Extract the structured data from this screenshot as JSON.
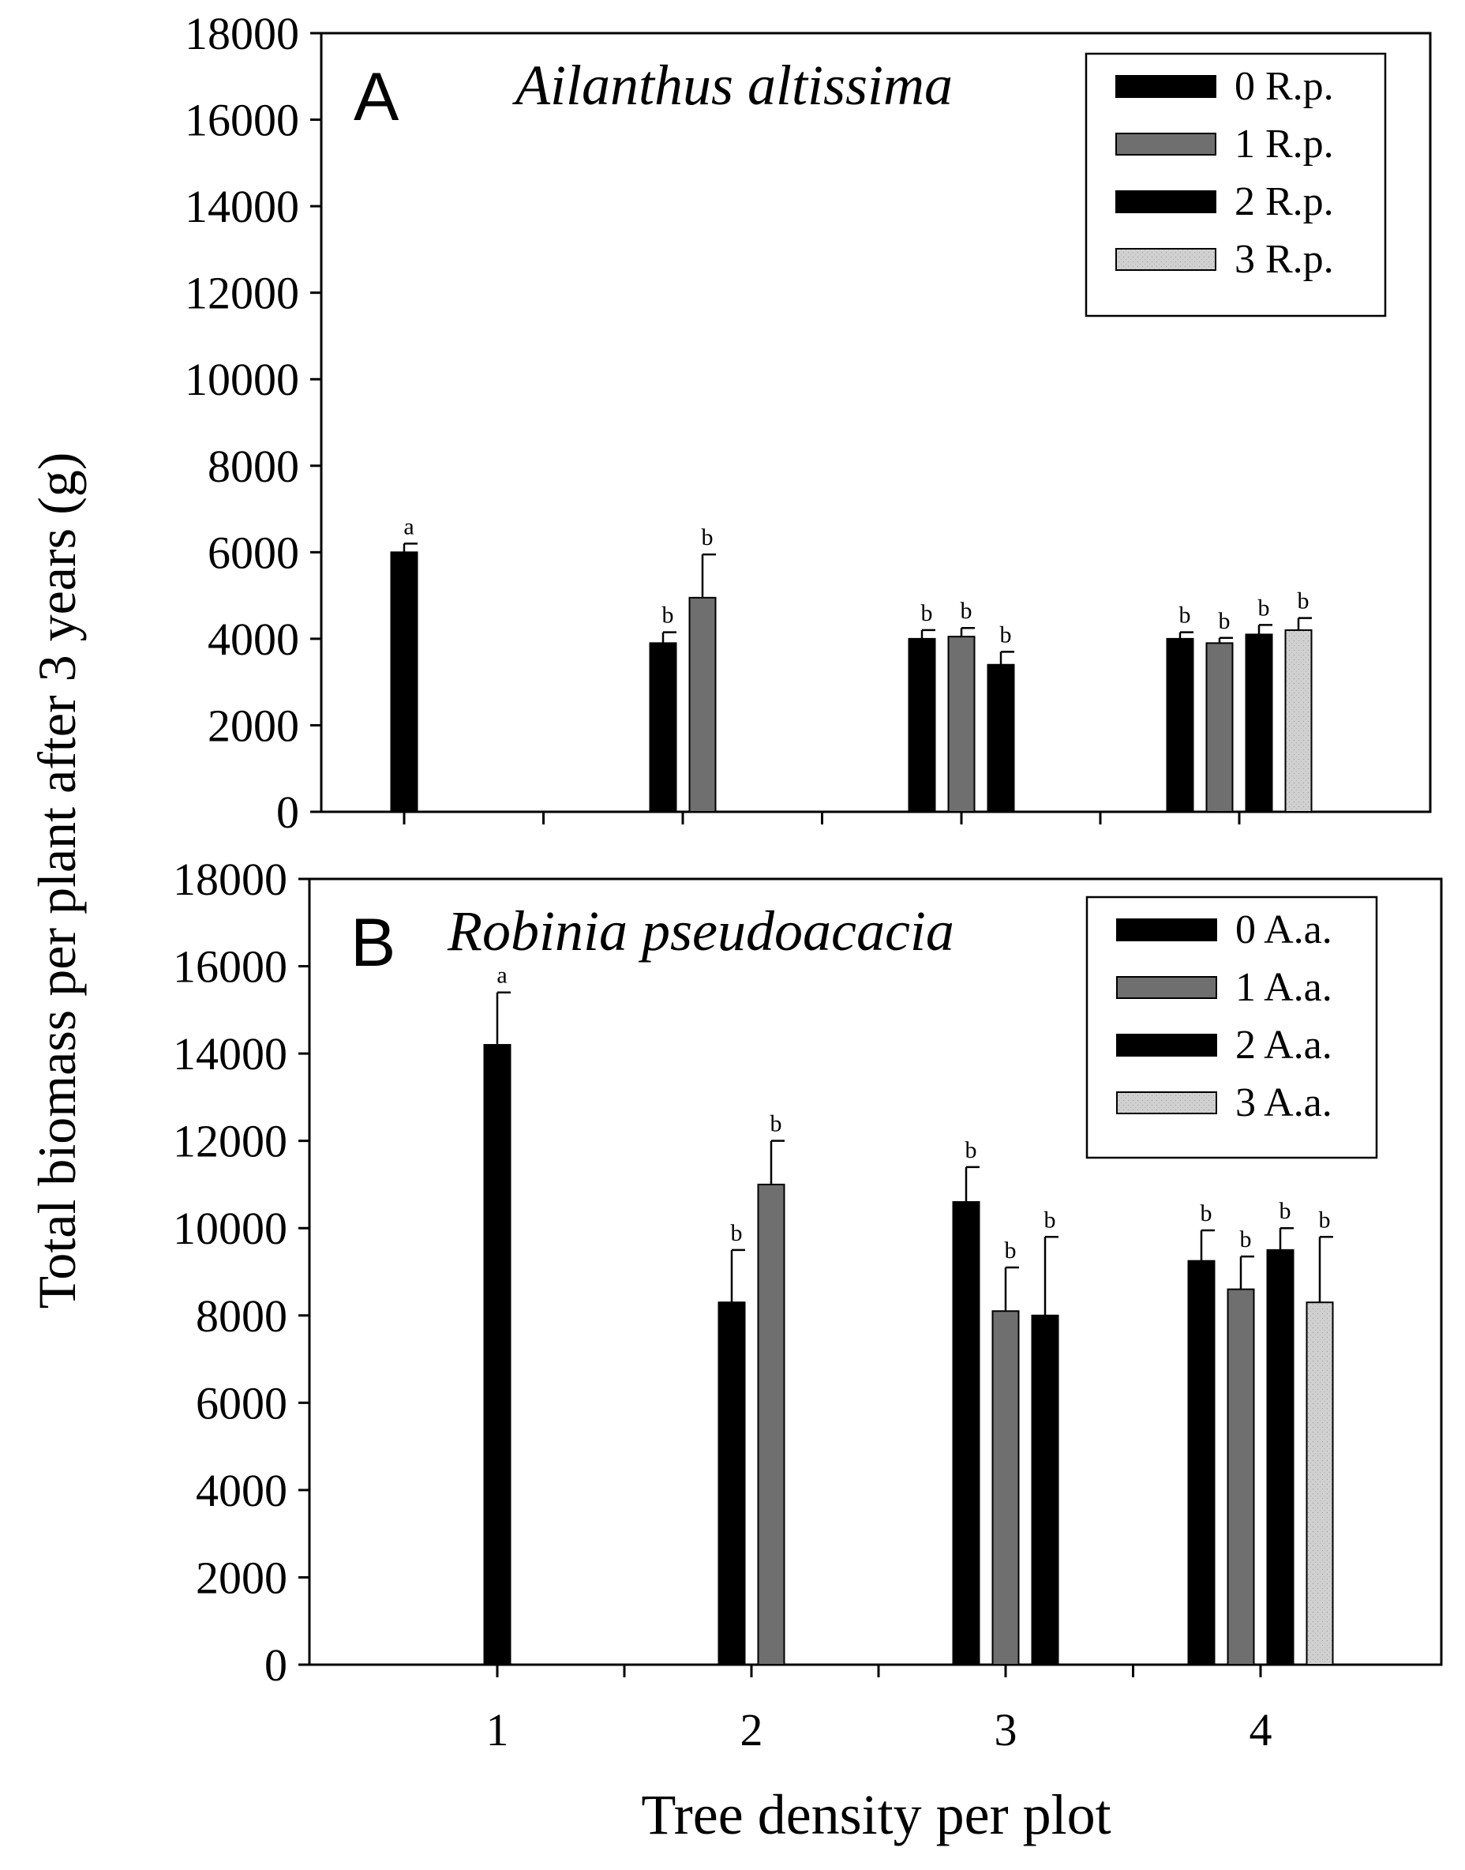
{
  "figure": {
    "ylabel": "Total biomass per plant after 3 years (g)",
    "xlabel": "Tree density per plot",
    "x_categories": [
      "1",
      "2",
      "3",
      "4"
    ]
  },
  "colors": {
    "black": "#000000",
    "gray": "#6f6f6f",
    "lightgray": "#d0d0d0",
    "axis": "#000000"
  },
  "chart_data": [
    {
      "type": "bar",
      "panel": "A",
      "title": "Ailanthus altissima",
      "xlabel": "Tree density per plot",
      "ylabel": "Total biomass per plant after 3 years (g)",
      "categories": [
        "1",
        "2",
        "3",
        "4"
      ],
      "ylim": [
        0,
        18000
      ],
      "yticks": [
        0,
        2000,
        4000,
        6000,
        8000,
        10000,
        12000,
        14000,
        16000,
        18000
      ],
      "legend_position": "top-right",
      "series": [
        {
          "name": "0 R.p.",
          "fill": "black",
          "values": [
            6000,
            3900,
            4000,
            4000
          ],
          "errors": [
            200,
            250,
            200,
            150
          ],
          "letters": [
            "a",
            "b",
            "b",
            "b"
          ]
        },
        {
          "name": "1 R.p.",
          "fill": "gray",
          "values": [
            null,
            4950,
            4050,
            3900
          ],
          "errors": [
            null,
            1000,
            200,
            120
          ],
          "letters": [
            null,
            "b",
            "b",
            "b"
          ]
        },
        {
          "name": "2 R.p.",
          "fill": "black",
          "values": [
            null,
            null,
            3400,
            4100
          ],
          "errors": [
            null,
            null,
            300,
            220
          ],
          "letters": [
            null,
            null,
            "b",
            "b"
          ]
        },
        {
          "name": "3 R.p.",
          "fill": "lightgray",
          "values": [
            null,
            null,
            null,
            4200
          ],
          "errors": [
            null,
            null,
            null,
            280
          ],
          "letters": [
            null,
            null,
            null,
            "b"
          ]
        }
      ]
    },
    {
      "type": "bar",
      "panel": "B",
      "title": "Robinia pseudoacacia",
      "xlabel": "Tree density per plot",
      "ylabel": "Total biomass per plant after 3 years (g)",
      "categories": [
        "1",
        "2",
        "3",
        "4"
      ],
      "ylim": [
        0,
        18000
      ],
      "yticks": [
        0,
        2000,
        4000,
        6000,
        8000,
        10000,
        12000,
        14000,
        16000,
        18000
      ],
      "legend_position": "top-right",
      "series": [
        {
          "name": "0 A.a.",
          "fill": "black",
          "values": [
            14200,
            8300,
            10600,
            9250
          ],
          "errors": [
            1200,
            1200,
            800,
            700
          ],
          "letters": [
            "a",
            "b",
            "b",
            "b"
          ]
        },
        {
          "name": "1 A.a.",
          "fill": "gray",
          "values": [
            null,
            11000,
            8100,
            8600
          ],
          "errors": [
            null,
            1000,
            1000,
            750
          ],
          "letters": [
            null,
            "b",
            "b",
            "b"
          ]
        },
        {
          "name": "2 A.a.",
          "fill": "black",
          "values": [
            null,
            null,
            8000,
            9500
          ],
          "errors": [
            null,
            null,
            1800,
            500
          ],
          "letters": [
            null,
            null,
            "b",
            "b"
          ]
        },
        {
          "name": "3 A.a.",
          "fill": "lightgray",
          "values": [
            null,
            null,
            null,
            8300
          ],
          "errors": [
            null,
            null,
            null,
            1500
          ],
          "letters": [
            null,
            null,
            null,
            "b"
          ]
        }
      ]
    }
  ]
}
